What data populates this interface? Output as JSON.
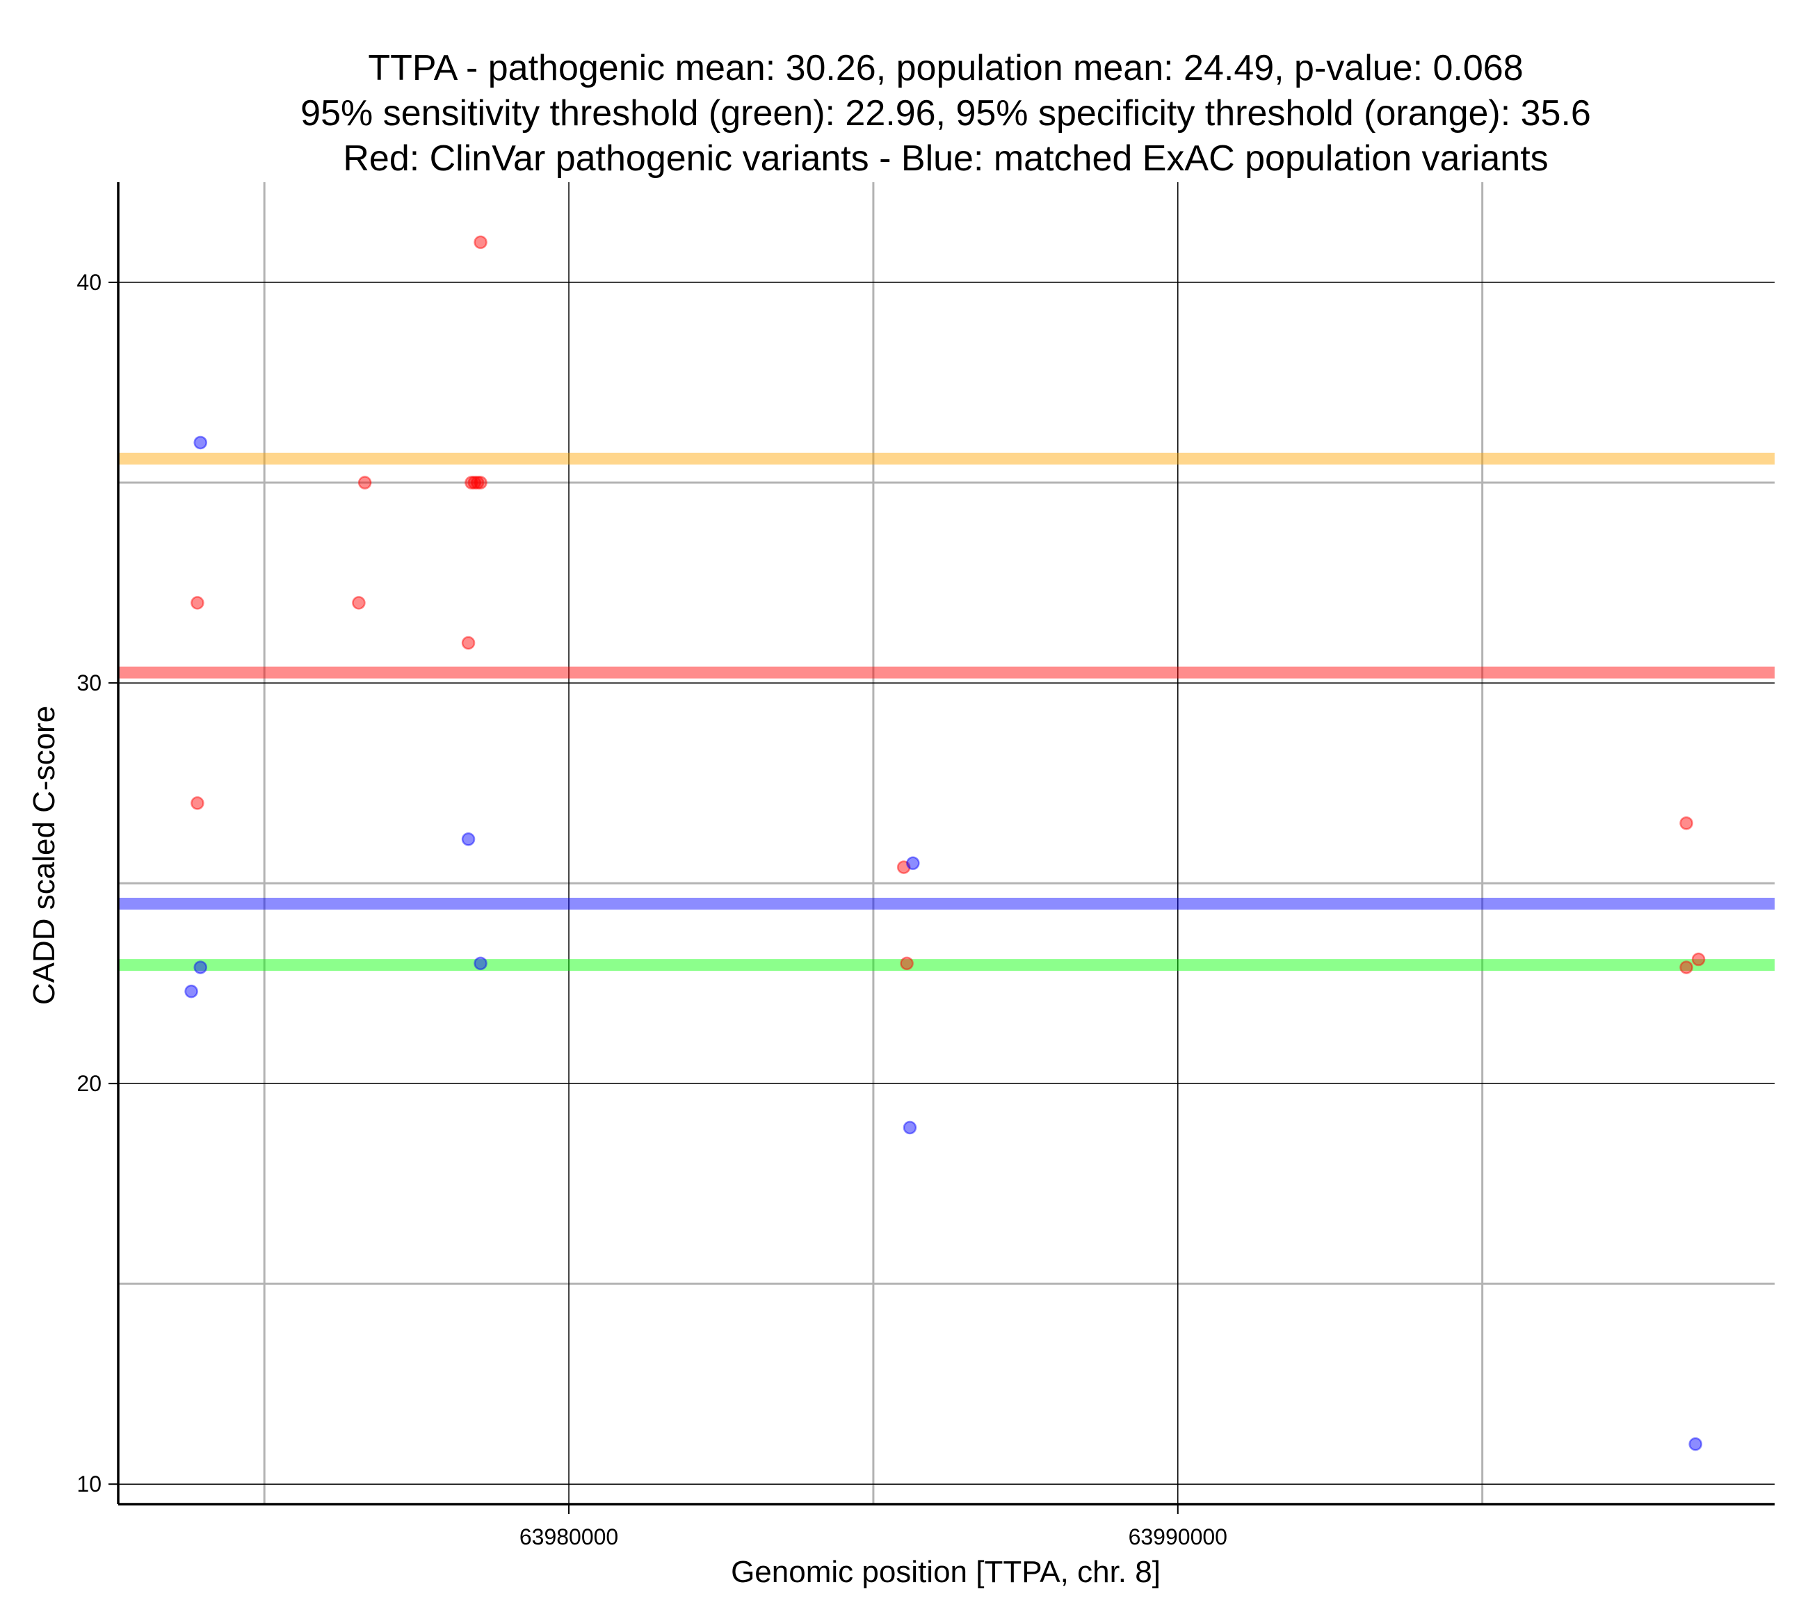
{
  "chart_data": {
    "type": "scatter",
    "title_lines": [
      "TTPA - pathogenic mean: 30.26, population mean: 24.49, p-value: 0.068",
      "95% sensitivity threshold (green): 22.96, 95% specificity threshold (orange): 35.6",
      "Red: ClinVar pathogenic variants - Blue: matched ExAC population variants"
    ],
    "xlabel": "Genomic position [TTPA, chr. 8]",
    "ylabel": "CADD scaled C-score",
    "xlim": [
      63972600,
      63999800
    ],
    "ylim": [
      9.5,
      42.5
    ],
    "x_ticks": [
      {
        "value": 63980000,
        "label": "63980000"
      },
      {
        "value": 63990000,
        "label": "63990000"
      }
    ],
    "x_minor_grid": [
      63975000,
      63985000,
      63995000
    ],
    "y_ticks": [
      {
        "value": 10,
        "label": "10"
      },
      {
        "value": 20,
        "label": "20"
      },
      {
        "value": 30,
        "label": "30"
      },
      {
        "value": 40,
        "label": "40"
      }
    ],
    "y_minor_grid": [
      15,
      25,
      35
    ],
    "grid": true,
    "hlines": [
      {
        "name": "95% specificity threshold",
        "value": 35.6,
        "color": "#ffa500"
      },
      {
        "name": "pathogenic mean",
        "value": 30.26,
        "color": "#ff0000"
      },
      {
        "name": "population mean",
        "value": 24.49,
        "color": "#0000ff"
      },
      {
        "name": "95% sensitivity threshold",
        "value": 22.96,
        "color": "#00ff00"
      }
    ],
    "series": [
      {
        "name": "ClinVar pathogenic variants",
        "color": "#ff0000",
        "points": [
          {
            "x": 63978550,
            "y": 41.0
          },
          {
            "x": 63976650,
            "y": 35.0
          },
          {
            "x": 63978400,
            "y": 35.0
          },
          {
            "x": 63978450,
            "y": 35.0
          },
          {
            "x": 63978500,
            "y": 35.0
          },
          {
            "x": 63978550,
            "y": 35.0
          },
          {
            "x": 63973900,
            "y": 32.0
          },
          {
            "x": 63976550,
            "y": 32.0
          },
          {
            "x": 63978350,
            "y": 31.0
          },
          {
            "x": 63973900,
            "y": 27.0
          },
          {
            "x": 63985500,
            "y": 25.4
          },
          {
            "x": 63985550,
            "y": 23.0
          },
          {
            "x": 63998350,
            "y": 26.5
          },
          {
            "x": 63998350,
            "y": 22.9
          },
          {
            "x": 63998550,
            "y": 23.1
          }
        ]
      },
      {
        "name": "matched ExAC population variants",
        "color": "#0000ff",
        "points": [
          {
            "x": 63973950,
            "y": 36.0
          },
          {
            "x": 63978350,
            "y": 26.1
          },
          {
            "x": 63985650,
            "y": 25.5
          },
          {
            "x": 63973950,
            "y": 22.9
          },
          {
            "x": 63973800,
            "y": 22.3
          },
          {
            "x": 63978550,
            "y": 23.0
          },
          {
            "x": 63985600,
            "y": 18.9
          },
          {
            "x": 63998500,
            "y": 11.0
          }
        ]
      }
    ]
  }
}
